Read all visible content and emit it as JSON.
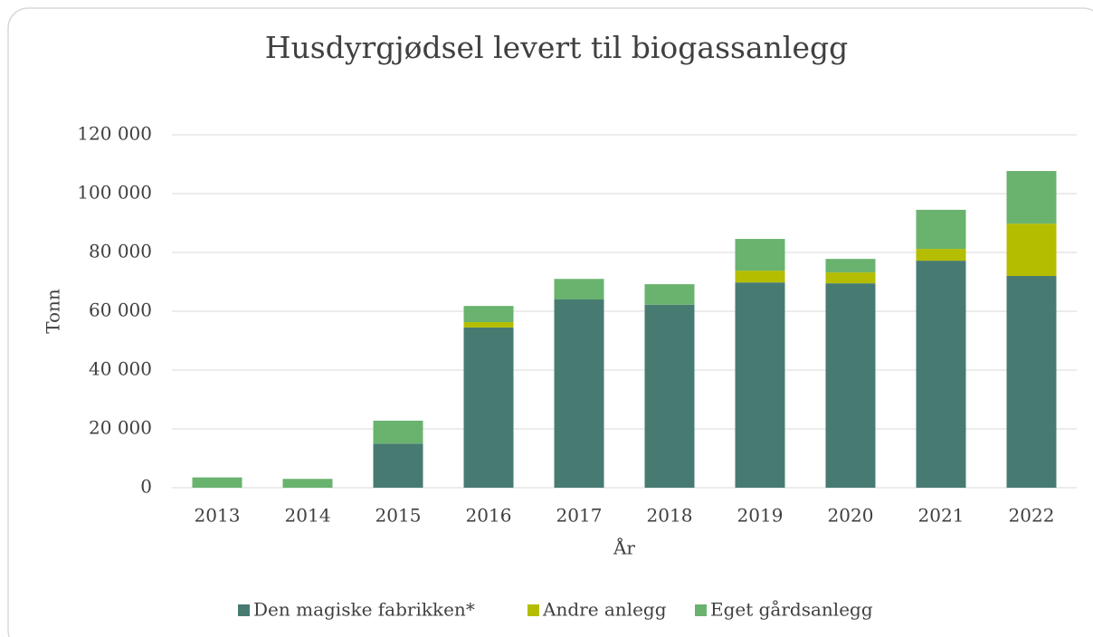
{
  "chart_data": {
    "type": "stacked_bar",
    "title": "Husdyrgjødsel levert til biogassanlegg",
    "x_label": "År",
    "y_label": "Tonn",
    "categories": [
      "2013",
      "2014",
      "2015",
      "2016",
      "2017",
      "2018",
      "2019",
      "2020",
      "2021",
      "2022"
    ],
    "series": [
      {
        "name": "Den magiske fabrikken*",
        "color": "#477b72",
        "values": [
          0,
          0,
          15000,
          54500,
          64000,
          62200,
          69800,
          69500,
          77200,
          72000
        ]
      },
      {
        "name": "Andre anlegg",
        "color": "#b5bd00",
        "values": [
          0,
          0,
          0,
          1800,
          0,
          0,
          4000,
          3700,
          4000,
          17800
        ]
      },
      {
        "name": "Eget gårdsanlegg",
        "color": "#69b36e",
        "values": [
          3500,
          3000,
          7800,
          5500,
          7000,
          7000,
          10800,
          4600,
          13300,
          17900
        ]
      }
    ],
    "ylim": [
      0,
      120000
    ],
    "yticks": [
      0,
      {
        "value": 20000,
        "label": "20 000"
      },
      {
        "value": 40000,
        "label": "40 000"
      },
      {
        "value": 60000,
        "label": "60 000"
      },
      {
        "value": 80000,
        "label": "80 000"
      },
      {
        "value": 100000,
        "label": "100 000"
      },
      {
        "value": 120000,
        "label": "120 000"
      }
    ],
    "grid": true,
    "legend": "bottom"
  }
}
